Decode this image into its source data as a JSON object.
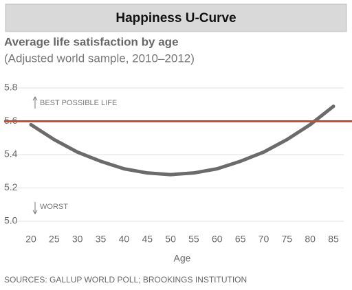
{
  "chart_data": {
    "type": "line",
    "title": "Happiness U-Curve",
    "subtitle": "Average life satisfaction by age",
    "subtitle2": "(Adjusted world sample, 2010–2012)",
    "x_label": "Age",
    "source": "SOURCES: GALLUP WORLD POLL; BROOKINGS INSTITUTION",
    "annotations": [
      "BEST POSSIBLE LIFE",
      "WORST"
    ],
    "x": [
      20,
      25,
      30,
      35,
      40,
      45,
      50,
      55,
      60,
      65,
      70,
      75,
      80,
      85
    ],
    "series": [
      {
        "color": "#6b6b6b",
        "values": [
          5.58,
          5.49,
          5.415,
          5.36,
          5.315,
          5.29,
          5.28,
          5.29,
          5.315,
          5.36,
          5.415,
          5.49,
          5.58,
          5.69
        ]
      }
    ],
    "reference_line": {
      "value": 5.6,
      "color": "#d9472b"
    },
    "xlim": [
      20,
      85
    ],
    "xticks": [
      20,
      25,
      30,
      35,
      40,
      45,
      50,
      55,
      60,
      65,
      70,
      75,
      80,
      85
    ],
    "ylim": [
      5.0,
      5.8
    ],
    "yticks": [
      {
        "value": 5.0,
        "label": "5.0"
      },
      5.2,
      5.4,
      5.6,
      5.8
    ],
    "grid": true
  }
}
